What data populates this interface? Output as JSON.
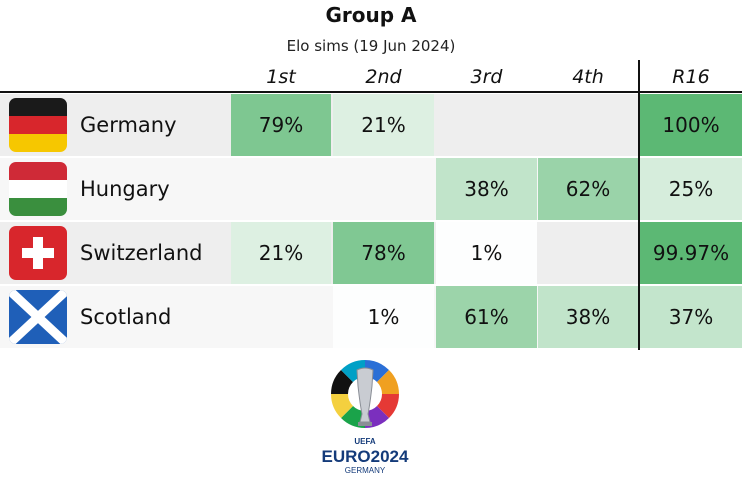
{
  "title": "Group A",
  "subtitle": "Elo sims (19 Jun 2024)",
  "columns": [
    "1st",
    "2nd",
    "3rd",
    "4th",
    "R16"
  ],
  "chart_data": {
    "type": "table",
    "title": "Group A",
    "subtitle": "Elo sims (19 Jun 2024)",
    "columns": [
      "1st",
      "2nd",
      "3rd",
      "4th",
      "R16"
    ],
    "rows": [
      {
        "team": "Germany",
        "flag": "germany-flag-icon",
        "values": [
          "79%",
          "21%",
          "",
          "",
          "100%"
        ],
        "numeric": [
          79,
          21,
          null,
          null,
          100
        ]
      },
      {
        "team": "Hungary",
        "flag": "hungary-flag-icon",
        "values": [
          "",
          "",
          "38%",
          "62%",
          "25%"
        ],
        "numeric": [
          null,
          null,
          38,
          62,
          25
        ]
      },
      {
        "team": "Switzerland",
        "flag": "switzerland-flag-icon",
        "values": [
          "21%",
          "78%",
          "1%",
          "",
          "99.97%"
        ],
        "numeric": [
          21,
          78,
          1,
          null,
          99.97
        ]
      },
      {
        "team": "Scotland",
        "flag": "scotland-flag-icon",
        "values": [
          "",
          "1%",
          "61%",
          "38%",
          "37%"
        ],
        "numeric": [
          null,
          1,
          61,
          38,
          37
        ]
      }
    ],
    "color_scale": {
      "low": "#ffffff",
      "high": "#5cb874"
    }
  },
  "logo": {
    "top": "UEFA",
    "main": "EURO2024",
    "sub": "GERMANY"
  }
}
